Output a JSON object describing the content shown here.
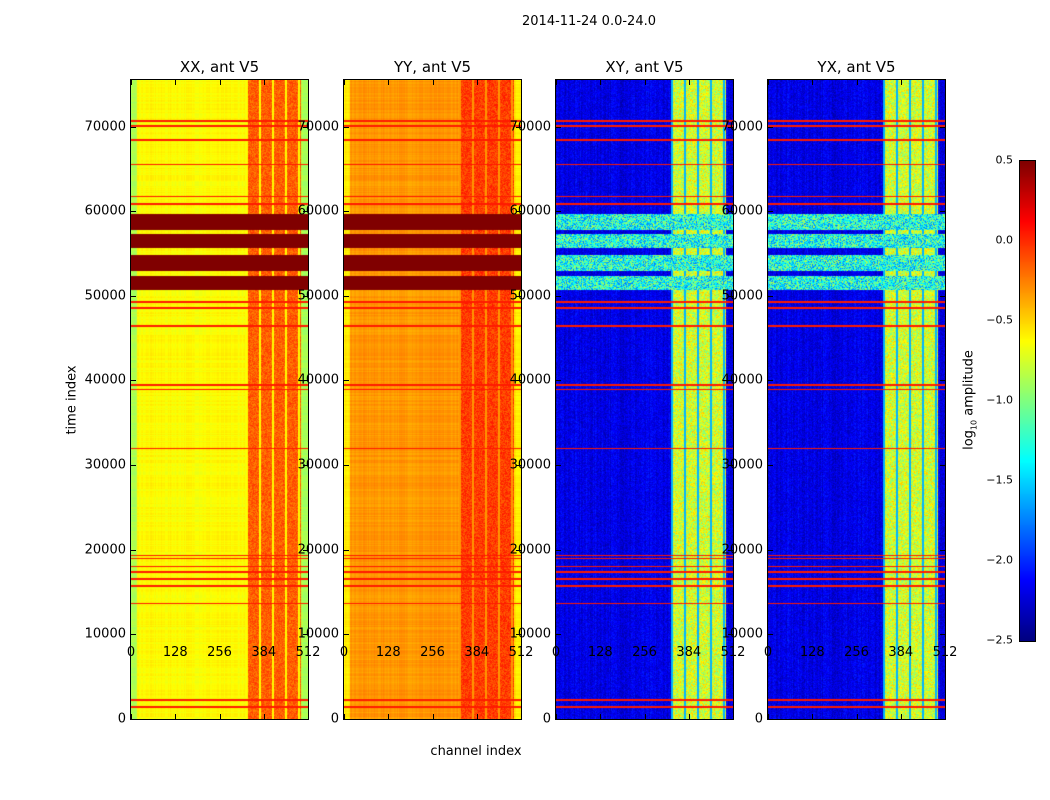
{
  "chart_data": {
    "type": "heatmap",
    "suptitle": "2014-11-24 0.0-24.0",
    "xlabel": "channel index",
    "ylabel": "time index",
    "xlim": [
      0,
      512
    ],
    "ylim": [
      0,
      75500
    ],
    "xticks": [
      "0",
      "128",
      "256",
      "384",
      "512"
    ],
    "xtick_values": [
      0,
      128,
      256,
      384,
      512
    ],
    "yticks": [
      "0",
      "10000",
      "20000",
      "30000",
      "40000",
      "50000",
      "60000",
      "70000"
    ],
    "ytick_values": [
      0,
      10000,
      20000,
      30000,
      40000,
      50000,
      60000,
      70000
    ],
    "colorbar": {
      "label": "log10 amplitude",
      "label_main": "log",
      "label_sub": "10",
      "label_rest": " amplitude",
      "range": [
        -2.5,
        0.5
      ],
      "colormap": "jet",
      "ticks": [
        "0.5",
        "0.0",
        "−0.5",
        "−1.0",
        "−1.5",
        "−2.0",
        "−2.5"
      ],
      "tick_values": [
        0.5,
        0.0,
        -0.5,
        -1.0,
        -1.5,
        -2.0,
        -2.5
      ]
    },
    "band_channels": [
      330,
      490
    ],
    "saturated_time_ranges": [
      [
        50800,
        52400
      ],
      [
        53000,
        54900
      ],
      [
        55700,
        57400
      ],
      [
        57850,
        59750
      ]
    ],
    "flagged_rows": [
      1500,
      2300,
      13700,
      15800,
      16600,
      17400,
      18100,
      19000,
      19400,
      32000,
      39000,
      39500,
      46500,
      48600,
      49300,
      60900,
      61800,
      65600,
      68500,
      70100,
      70700
    ],
    "panels": [
      {
        "title": "XX, ant V5",
        "base": -0.62,
        "band": -0.15,
        "noisy": false
      },
      {
        "title": "YY, ant V5",
        "base": -0.32,
        "band": -0.05,
        "noisy": false
      },
      {
        "title": "XY, ant V5",
        "base": -2.2,
        "band": -0.75,
        "noisy": true
      },
      {
        "title": "YX, ant V5",
        "base": -2.2,
        "band": -0.75,
        "noisy": true
      }
    ]
  }
}
